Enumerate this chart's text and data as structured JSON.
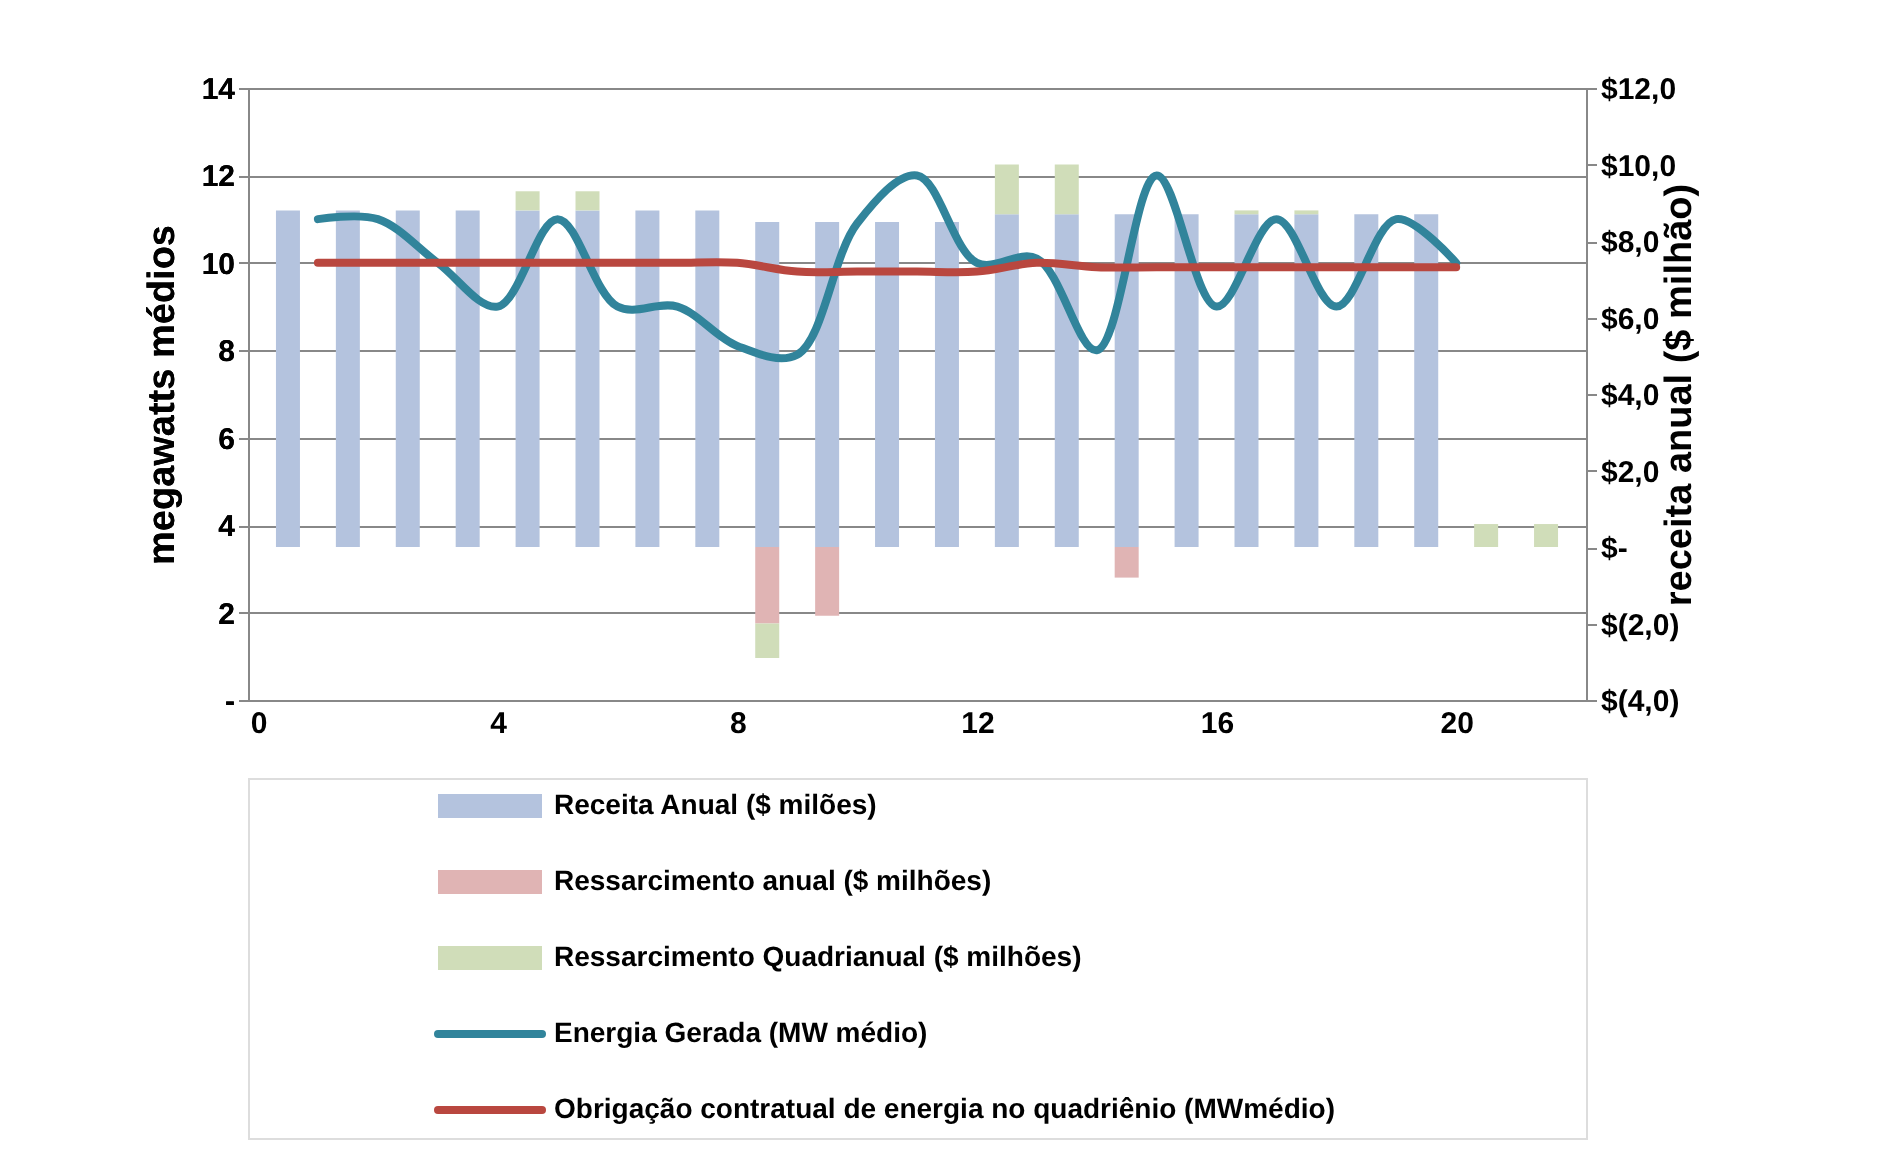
{
  "chart_data": {
    "type": "bar",
    "stacked": true,
    "grid": "y",
    "legend": "bottom",
    "xlim": [
      0,
      22
    ],
    "xticks": [
      0,
      4,
      8,
      12,
      16,
      20
    ],
    "ylim": [
      0,
      14
    ],
    "yticks": [
      {
        "value": 0,
        "label": "-"
      },
      2,
      4,
      6,
      8,
      10,
      12,
      14
    ],
    "y2lim": [
      -4,
      12
    ],
    "y2ticks": [
      {
        "value": -4,
        "label": "$(4,0)"
      },
      {
        "value": -2,
        "label": "$(2,0)"
      },
      {
        "value": 0,
        "label": "$-"
      },
      {
        "value": 2,
        "label": "$2,0"
      },
      {
        "value": 4,
        "label": "$4,0"
      },
      {
        "value": 6,
        "label": "$6,0"
      },
      {
        "value": 8,
        "label": "$8,0"
      },
      {
        "value": 10,
        "label": "$10,0"
      },
      {
        "value": 12,
        "label": "$12,0"
      }
    ],
    "ylabel": "megawatts médios",
    "y2label": "receita anual ($ milhão)",
    "x": [
      0.5,
      1.5,
      2.5,
      3.5,
      4.5,
      5.5,
      6.5,
      7.5,
      8.5,
      9.5,
      10.5,
      11.5,
      12.5,
      13.5,
      14.5,
      15.5,
      16.5,
      17.5,
      18.5,
      19.5,
      20.5,
      21.5
    ],
    "series": [
      {
        "name": "Receita Anual ($ milões)",
        "axis": "y2",
        "color": "#b4c3de",
        "values": [
          8.8,
          8.8,
          8.8,
          8.8,
          8.8,
          8.8,
          8.8,
          8.8,
          8.5,
          8.5,
          8.5,
          8.5,
          8.7,
          8.7,
          8.7,
          8.7,
          8.7,
          8.7,
          8.7,
          8.7,
          null,
          null
        ]
      },
      {
        "name": "Ressarcimento anual ($ milhões)",
        "axis": "y2",
        "color": "#e0b4b4",
        "values": [
          null,
          null,
          null,
          null,
          null,
          null,
          null,
          null,
          -2.0,
          -1.8,
          null,
          null,
          null,
          null,
          -0.8,
          null,
          null,
          null,
          null,
          null,
          null,
          null
        ]
      },
      {
        "name": "Ressarcimento Quadrianual ($ milhões)",
        "axis": "y2",
        "color": "#d0ddb9",
        "values": [
          null,
          null,
          null,
          null,
          0.5,
          0.5,
          null,
          null,
          -0.9,
          null,
          null,
          null,
          1.3,
          1.3,
          null,
          null,
          0.1,
          0.1,
          null,
          null,
          0.6,
          0.6
        ]
      },
      {
        "name": "Energia Gerada (MW médio)",
        "type": "line",
        "axis": "y",
        "color": "#31849b",
        "x": [
          1,
          2,
          3,
          4,
          5,
          6,
          7,
          8,
          9,
          10,
          11,
          12,
          13,
          14,
          15,
          16,
          17,
          18,
          19,
          20
        ],
        "values": [
          11.0,
          11.0,
          10.0,
          9.0,
          11.0,
          9.0,
          9.0,
          8.1,
          7.9,
          10.9,
          12.0,
          10.0,
          10.1,
          8.0,
          12.0,
          9.0,
          11.0,
          9.0,
          11.0,
          10.0
        ]
      },
      {
        "name": "Obrigação contratual de energia no quadriênio (MWmédio)",
        "type": "line",
        "axis": "y",
        "color": "#b9473f",
        "x": [
          1,
          2,
          3,
          4,
          5,
          6,
          7,
          8,
          9,
          10,
          11,
          12,
          13,
          14,
          15,
          16,
          17,
          18,
          19,
          20
        ],
        "values": [
          10.0,
          10.0,
          10.0,
          10.0,
          10.0,
          10.0,
          10.0,
          10.0,
          9.8,
          9.8,
          9.8,
          9.8,
          10.0,
          9.9,
          9.9,
          9.9,
          9.9,
          9.9,
          9.9,
          9.9
        ]
      }
    ]
  }
}
